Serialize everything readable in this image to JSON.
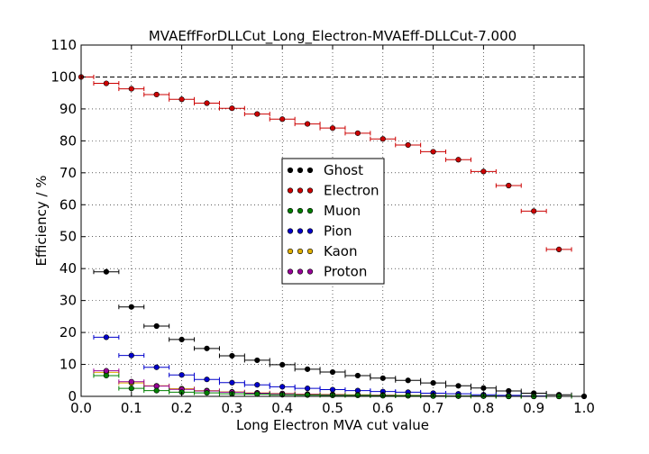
{
  "chart_data": {
    "type": "scatter",
    "title": "MVAEffForDLLCut_Long_Electron-MVAEff-DLLCut-7.000",
    "xlabel": "Long Electron MVA cut value",
    "ylabel": "Efficiency / %",
    "xlim": [
      0.0,
      1.0
    ],
    "ylim": [
      0,
      110
    ],
    "xticks": [
      "0.0",
      "0.1",
      "0.2",
      "0.3",
      "0.4",
      "0.5",
      "0.6",
      "0.7",
      "0.8",
      "0.9",
      "1.0"
    ],
    "yticks": [
      "0",
      "10",
      "20",
      "30",
      "40",
      "50",
      "60",
      "70",
      "80",
      "90",
      "100",
      "110"
    ],
    "grid": true,
    "reference_line": 100,
    "legend_position": "center",
    "x_bin_half_width": 0.025,
    "x": [
      0.0,
      0.05,
      0.1,
      0.15,
      0.2,
      0.25,
      0.3,
      0.35,
      0.4,
      0.45,
      0.5,
      0.55,
      0.6,
      0.65,
      0.7,
      0.75,
      0.8,
      0.85,
      0.9,
      0.95,
      1.0
    ],
    "series": [
      {
        "name": "Ghost",
        "color": "#000000",
        "values": [
          null,
          39,
          28,
          22,
          17.8,
          15,
          12.7,
          11.3,
          9.9,
          8.5,
          7.6,
          6.5,
          5.7,
          5,
          4.2,
          3.3,
          2.6,
          1.7,
          1.0,
          0.5,
          0
        ]
      },
      {
        "name": "Electron",
        "color": "#cc0000",
        "values": [
          100,
          98,
          96.3,
          94.5,
          93,
          91.8,
          90.2,
          88.4,
          86.8,
          85.3,
          84,
          82.4,
          80.6,
          78.7,
          76.6,
          74.1,
          70.4,
          66,
          58,
          46,
          null
        ]
      },
      {
        "name": "Muon",
        "color": "#008000",
        "values": [
          null,
          6.5,
          2.5,
          1.8,
          1.3,
          1.1,
          0.8,
          0.7,
          0.5,
          0.4,
          0.3,
          0.3,
          0.2,
          0.2,
          0.1,
          0.1,
          0.1,
          0.0,
          0.0,
          0.0,
          null
        ]
      },
      {
        "name": "Pion",
        "color": "#0000cc",
        "values": [
          null,
          18.5,
          12.8,
          9.1,
          6.7,
          5.3,
          4.3,
          3.6,
          3.0,
          2.5,
          2.1,
          1.8,
          1.5,
          1.3,
          1.0,
          0.8,
          0.5,
          0.3,
          0.1,
          0.0,
          null
        ]
      },
      {
        "name": "Kaon",
        "color": "#e0b000",
        "values": [
          null,
          7.5,
          4.2,
          3.3,
          2.4,
          1.8,
          1.4,
          1.1,
          0.9,
          0.7,
          0.6,
          0.5,
          0.4,
          0.3,
          0.2,
          0.1,
          0.1,
          0.0,
          0.0,
          0.0,
          null
        ]
      },
      {
        "name": "Proton",
        "color": "#990099",
        "values": [
          null,
          8.0,
          4.6,
          3.2,
          2.2,
          1.7,
          1.3,
          1.0,
          0.8,
          0.6,
          0.5,
          0.4,
          0.3,
          0.2,
          0.2,
          0.1,
          0.1,
          0.0,
          0.0,
          0.0,
          null
        ]
      }
    ]
  }
}
